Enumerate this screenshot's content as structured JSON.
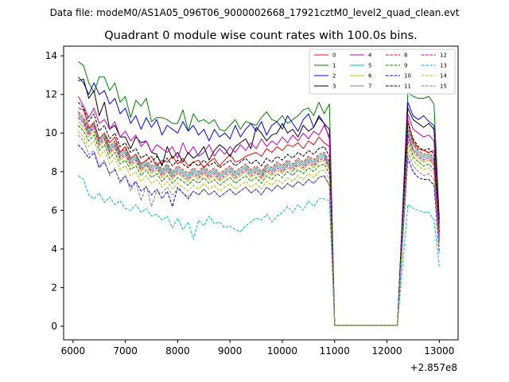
{
  "header": {
    "data_file_label": "Data file: modeM0/AS1A05_096T06_9000002668_17921cztM0_level2_quad_clean.evt"
  },
  "chart_data": {
    "type": "line",
    "title": "Quadrant 0 module wise count rates with 100.0s bins.",
    "xlabel": "",
    "ylabel": "",
    "x_offset_label": "+2.857e8",
    "x_offset": 285700000,
    "xlim": [
      5820,
      13360
    ],
    "ylim": [
      -0.7,
      14.5
    ],
    "xticks": [
      6000,
      7000,
      8000,
      9000,
      10000,
      11000,
      12000,
      13000
    ],
    "xtick_labels": [
      "6000",
      "7000",
      "8000",
      "9000",
      "10000",
      "11000",
      "12000",
      "13000"
    ],
    "yticks": [
      0,
      2,
      4,
      6,
      8,
      10,
      12,
      14
    ],
    "ytick_labels": [
      "0",
      "2",
      "4",
      "6",
      "8",
      "10",
      "12",
      "14"
    ],
    "grid": false,
    "legend_location": "upper-right",
    "legend_columns": 4,
    "x_segment_1": {
      "start": 6100,
      "end": 10900,
      "step": 100
    },
    "x_segment_2": [
      11000,
      12200,
      12400,
      12500,
      12600,
      12700,
      12800,
      12900,
      13000
    ],
    "series": [
      {
        "name": "0",
        "color": "#ff0000",
        "dash": "solid",
        "values": [
          11.3,
          11.2,
          10.3,
          10.5,
          9.7,
          10.0,
          9.5,
          9.8,
          9.0,
          9.3,
          8.7,
          8.9,
          8.4,
          8.6,
          8.8,
          8.3,
          8.6,
          8.5,
          8.8,
          8.4,
          8.7,
          8.3,
          8.5,
          8.6,
          8.2,
          8.5,
          8.7,
          8.3,
          8.6,
          8.9,
          8.5,
          8.6,
          8.8,
          8.9,
          9.0,
          8.8,
          9.2,
          9.0,
          9.3,
          9.1,
          9.4,
          9.3,
          9.5,
          9.2,
          9.6,
          9.4,
          9.8,
          9.5,
          9.3,
          0.05,
          0.05,
          10.7,
          9.6,
          9.2,
          9.1,
          9.0,
          9.1,
          4.9
        ]
      },
      {
        "name": "1",
        "color": "#008000",
        "dash": "solid",
        "values": [
          13.7,
          13.5,
          12.6,
          12.1,
          12.9,
          12.9,
          12.2,
          12.6,
          11.6,
          11.9,
          10.8,
          11.7,
          11.4,
          11.8,
          10.6,
          10.8,
          10.8,
          10.7,
          10.5,
          10.5,
          11.2,
          10.1,
          11.0,
          10.6,
          10.7,
          10.5,
          10.7,
          10.2,
          10.1,
          10.4,
          10.7,
          10.2,
          10.6,
          10.5,
          10.4,
          10.8,
          11.1,
          10.7,
          10.6,
          10.9,
          10.5,
          10.7,
          10.9,
          11.2,
          11.3,
          10.9,
          11.6,
          11.0,
          11.5,
          0.05,
          0.05,
          12.1,
          11.9,
          11.8,
          11.8,
          11.9,
          11.5,
          5.6
        ]
      },
      {
        "name": "2",
        "color": "#0000ff",
        "dash": "solid",
        "values": [
          12.9,
          12.6,
          12.0,
          12.6,
          12.0,
          12.2,
          11.5,
          11.8,
          11.0,
          11.3,
          10.5,
          10.9,
          10.2,
          10.8,
          10.3,
          10.7,
          9.9,
          10.4,
          10.2,
          10.0,
          10.6,
          10.1,
          10.4,
          9.9,
          10.2,
          9.6,
          10.2,
          9.8,
          10.0,
          9.7,
          10.4,
          9.8,
          10.2,
          10.5,
          10.1,
          10.6,
          9.9,
          10.4,
          10.6,
          10.2,
          10.9,
          10.5,
          10.1,
          10.7,
          11.0,
          10.3,
          10.8,
          10.5,
          9.7,
          0.05,
          0.05,
          11.6,
          10.9,
          10.7,
          10.9,
          10.6,
          10.4,
          5.3
        ]
      },
      {
        "name": "3",
        "color": "#000000",
        "dash": "solid",
        "values": [
          12.7,
          12.8,
          11.8,
          12.2,
          10.9,
          11.6,
          10.2,
          10.4,
          9.8,
          9.8,
          9.2,
          9.8,
          9.5,
          9.6,
          9.0,
          8.9,
          8.3,
          9.3,
          8.7,
          9.0,
          8.5,
          9.0,
          8.7,
          8.9,
          9.3,
          8.6,
          9.1,
          9.4,
          9.2,
          8.8,
          9.3,
          9.5,
          9.7,
          9.2,
          10.3,
          10.0,
          9.6,
          9.9,
          10.0,
          10.5,
          10.0,
          10.2,
          9.8,
          10.4,
          10.1,
          10.3,
          10.9,
          10.5,
          10.2,
          0.05,
          0.05,
          11.3,
          10.7,
          10.5,
          10.3,
          10.5,
          10.2,
          5.5
        ]
      },
      {
        "name": "4",
        "color": "#bf00bf",
        "dash": "solid",
        "values": [
          11.9,
          11.4,
          10.8,
          11.3,
          10.5,
          10.7,
          10.2,
          10.6,
          9.8,
          10.1,
          9.6,
          9.9,
          9.3,
          9.6,
          9.0,
          9.4,
          9.2,
          9.0,
          9.3,
          8.7,
          9.5,
          8.9,
          9.3,
          8.8,
          9.0,
          9.4,
          8.8,
          9.2,
          8.9,
          9.3,
          9.0,
          9.4,
          9.1,
          9.5,
          9.2,
          9.7,
          9.3,
          9.6,
          9.4,
          9.8,
          9.5,
          9.9,
          9.6,
          10.0,
          9.7,
          10.1,
          9.9,
          10.4,
          9.8,
          0.05,
          0.05,
          11.0,
          10.2,
          10.0,
          9.8,
          9.9,
          9.6,
          5.1
        ]
      },
      {
        "name": "5",
        "color": "#00bfa0",
        "dash": "solid",
        "values": [
          11.0,
          10.7,
          10.1,
          10.5,
          9.6,
          9.9,
          9.2,
          9.5,
          8.9,
          9.1,
          8.6,
          8.8,
          8.3,
          8.5,
          8.2,
          8.4,
          8.0,
          8.3,
          7.9,
          8.2,
          8.0,
          7.8,
          8.1,
          7.9,
          8.2,
          7.9,
          8.1,
          7.8,
          8.0,
          8.2,
          7.9,
          8.1,
          8.3,
          8.0,
          8.2,
          7.9,
          8.3,
          8.1,
          8.4,
          8.2,
          8.5,
          8.3,
          8.6,
          8.4,
          8.7,
          8.5,
          8.8,
          8.9,
          8.4,
          0.05,
          0.05,
          10.2,
          9.4,
          9.0,
          8.8,
          8.9,
          8.6,
          4.6
        ]
      },
      {
        "name": "6",
        "color": "#bfbf00",
        "dash": "solid",
        "values": [
          10.6,
          10.3,
          9.8,
          10.1,
          9.3,
          9.6,
          8.9,
          9.2,
          8.6,
          8.8,
          8.3,
          8.5,
          8.0,
          8.3,
          7.9,
          8.1,
          7.7,
          8.0,
          7.6,
          7.9,
          7.7,
          7.5,
          7.8,
          7.6,
          7.9,
          7.6,
          7.8,
          7.5,
          7.7,
          7.9,
          7.6,
          7.8,
          8.0,
          7.7,
          7.9,
          7.6,
          8.0,
          7.8,
          8.1,
          7.9,
          8.2,
          8.0,
          8.3,
          8.1,
          8.4,
          8.2,
          8.5,
          8.6,
          8.1,
          0.05,
          0.05,
          9.8,
          9.0,
          8.7,
          8.5,
          8.6,
          8.3,
          4.5
        ]
      },
      {
        "name": "7",
        "color": "#808080",
        "dash": "solid",
        "values": [
          10.9,
          10.6,
          10.0,
          10.4,
          9.5,
          9.8,
          9.1,
          9.4,
          8.8,
          9.0,
          8.5,
          8.7,
          8.2,
          8.4,
          8.1,
          8.3,
          7.9,
          8.2,
          7.8,
          8.1,
          7.9,
          7.7,
          8.0,
          7.8,
          8.1,
          7.8,
          8.0,
          7.7,
          7.9,
          8.1,
          7.8,
          8.0,
          8.2,
          7.9,
          8.1,
          7.8,
          8.2,
          8.0,
          8.3,
          8.1,
          8.4,
          8.2,
          8.5,
          8.3,
          8.6,
          8.4,
          8.7,
          8.8,
          8.3,
          0.05,
          0.05,
          10.0,
          9.2,
          8.9,
          8.7,
          8.8,
          8.5,
          4.6
        ]
      },
      {
        "name": "8",
        "color": "#ff0000",
        "dash": "dashed",
        "values": [
          11.1,
          10.8,
          10.2,
          10.6,
          9.7,
          10.0,
          9.3,
          9.6,
          9.0,
          9.2,
          8.7,
          8.9,
          8.4,
          8.6,
          8.3,
          8.5,
          8.1,
          8.4,
          8.0,
          8.3,
          8.1,
          7.9,
          8.2,
          8.0,
          8.3,
          8.0,
          8.2,
          7.9,
          8.1,
          8.3,
          8.0,
          8.2,
          8.4,
          8.1,
          8.3,
          8.0,
          8.4,
          8.2,
          8.5,
          8.3,
          8.6,
          8.4,
          8.7,
          8.5,
          8.8,
          8.6,
          8.9,
          9.0,
          8.5,
          0.05,
          0.05,
          10.3,
          9.5,
          9.1,
          8.9,
          9.0,
          8.7,
          4.7
        ]
      },
      {
        "name": "9",
        "color": "#008000",
        "dash": "dashed",
        "values": [
          10.4,
          10.1,
          9.6,
          9.9,
          9.1,
          9.4,
          8.7,
          9.0,
          8.4,
          8.6,
          8.1,
          8.3,
          7.8,
          8.1,
          7.7,
          7.9,
          7.5,
          7.8,
          7.4,
          7.7,
          7.5,
          7.3,
          7.6,
          7.4,
          7.7,
          7.4,
          7.6,
          7.3,
          7.5,
          7.7,
          7.4,
          7.6,
          7.8,
          7.5,
          7.7,
          7.4,
          7.8,
          7.6,
          7.9,
          7.7,
          8.0,
          7.8,
          8.1,
          7.9,
          8.2,
          8.0,
          8.3,
          8.4,
          7.9,
          0.05,
          0.05,
          9.6,
          8.8,
          8.5,
          8.3,
          8.4,
          8.1,
          4.4
        ]
      },
      {
        "name": "10",
        "color": "#0000ff",
        "dash": "dashed",
        "values": [
          9.4,
          9.1,
          8.7,
          9.0,
          8.2,
          8.5,
          7.9,
          8.1,
          7.5,
          7.8,
          7.2,
          7.5,
          7.0,
          7.2,
          6.8,
          7.1,
          6.6,
          7.0,
          6.2,
          7.2,
          6.9,
          6.6,
          7.0,
          6.8,
          7.1,
          6.8,
          7.0,
          6.7,
          6.9,
          7.1,
          6.8,
          7.0,
          7.2,
          6.9,
          7.1,
          6.8,
          7.2,
          7.0,
          7.3,
          7.1,
          7.4,
          7.2,
          7.5,
          7.3,
          7.6,
          7.4,
          7.7,
          7.8,
          7.3,
          0.05,
          0.05,
          8.7,
          8.0,
          7.7,
          7.6,
          7.6,
          7.3,
          3.8
        ]
      },
      {
        "name": "11",
        "color": "#000000",
        "dash": "dashed",
        "values": [
          11.6,
          11.3,
          10.6,
          11.0,
          10.1,
          10.4,
          9.7,
          10.0,
          9.3,
          9.5,
          9.0,
          9.2,
          8.7,
          8.9,
          8.5,
          8.8,
          8.4,
          8.7,
          8.3,
          8.6,
          8.4,
          8.2,
          8.5,
          8.3,
          8.6,
          8.3,
          8.5,
          8.2,
          8.4,
          8.6,
          8.3,
          8.5,
          8.7,
          8.4,
          8.6,
          8.3,
          8.7,
          8.5,
          8.8,
          8.6,
          8.9,
          8.7,
          9.0,
          8.8,
          9.1,
          8.9,
          9.2,
          9.3,
          8.8,
          0.05,
          0.05,
          10.5,
          9.7,
          9.3,
          9.1,
          9.2,
          8.9,
          4.8
        ]
      },
      {
        "name": "12",
        "color": "#bf00bf",
        "dash": "dashed",
        "values": [
          10.8,
          10.5,
          9.9,
          10.3,
          9.4,
          9.7,
          9.0,
          9.3,
          8.7,
          8.9,
          8.4,
          8.6,
          8.1,
          8.4,
          8.0,
          8.2,
          7.8,
          8.1,
          7.7,
          8.0,
          7.8,
          7.6,
          7.9,
          7.7,
          8.0,
          7.7,
          7.9,
          7.6,
          7.8,
          8.0,
          7.7,
          7.9,
          8.1,
          7.8,
          8.0,
          7.7,
          8.1,
          7.9,
          8.2,
          8.0,
          8.3,
          8.1,
          8.4,
          8.2,
          8.5,
          8.3,
          8.6,
          8.7,
          8.2,
          0.05,
          0.05,
          9.9,
          9.1,
          8.8,
          8.6,
          8.7,
          8.4,
          4.5
        ]
      },
      {
        "name": "13",
        "color": "#00bfbf",
        "dash": "dashed",
        "values": [
          7.8,
          7.6,
          6.8,
          6.6,
          6.9,
          6.4,
          6.7,
          6.3,
          6.5,
          6.1,
          6.0,
          6.3,
          5.9,
          6.1,
          5.7,
          5.8,
          5.5,
          5.7,
          5.1,
          5.6,
          5.0,
          5.4,
          4.5,
          5.5,
          5.2,
          5.7,
          5.3,
          5.4,
          5.1,
          5.2,
          5.0,
          4.9,
          5.2,
          5.4,
          5.6,
          5.5,
          5.8,
          5.4,
          5.7,
          5.9,
          6.2,
          5.9,
          6.3,
          6.0,
          6.5,
          6.2,
          6.6,
          6.6,
          6.5,
          0.05,
          0.05,
          6.3,
          6.1,
          6.0,
          5.9,
          5.9,
          5.5,
          3.1
        ]
      },
      {
        "name": "14",
        "color": "#bfbf00",
        "dash": "dashed",
        "values": [
          10.1,
          9.8,
          9.3,
          9.6,
          8.8,
          9.1,
          8.4,
          8.7,
          8.1,
          8.3,
          7.8,
          8.0,
          7.5,
          7.8,
          7.4,
          7.6,
          7.2,
          7.5,
          7.1,
          7.4,
          7.2,
          7.0,
          7.3,
          7.1,
          7.4,
          7.1,
          7.3,
          7.0,
          7.2,
          7.4,
          7.1,
          7.3,
          7.5,
          7.2,
          7.4,
          7.1,
          7.5,
          7.3,
          7.6,
          7.4,
          7.7,
          7.5,
          7.8,
          7.6,
          7.9,
          7.7,
          8.0,
          8.1,
          7.6,
          0.05,
          0.05,
          9.3,
          8.6,
          8.3,
          8.1,
          8.2,
          7.9,
          4.3
        ]
      },
      {
        "name": "15",
        "color": "#808080",
        "dash": "dashed",
        "values": [
          9.9,
          9.6,
          8.9,
          9.1,
          8.3,
          8.6,
          7.8,
          8.2,
          7.4,
          7.8,
          7.0,
          7.5,
          6.5,
          7.3,
          6.2,
          7.0,
          6.9,
          7.2,
          6.8,
          7.1,
          6.9,
          6.7,
          7.0,
          6.8,
          7.1,
          6.8,
          7.0,
          6.7,
          6.9,
          7.1,
          6.8,
          7.0,
          7.2,
          6.9,
          7.1,
          6.8,
          7.2,
          7.0,
          7.3,
          7.1,
          7.4,
          7.2,
          7.5,
          7.3,
          7.6,
          7.4,
          7.7,
          7.8,
          7.3,
          0.05,
          0.05,
          9.0,
          8.3,
          8.0,
          7.8,
          7.9,
          7.6,
          4.1
        ]
      }
    ]
  }
}
